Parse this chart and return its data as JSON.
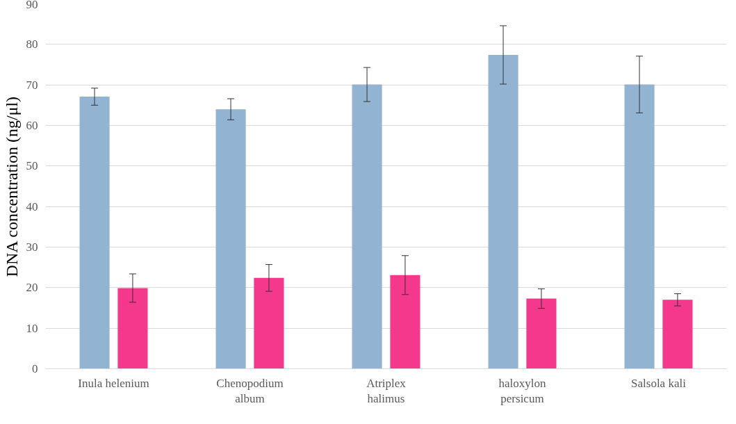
{
  "chart_data": {
    "type": "bar",
    "ylabel": "DNA concentration (ng/μl)",
    "categories": [
      "Inula helenium",
      "Chenopodium album",
      "Atriplex halimus",
      "haloxylon persicum",
      "Salsola kali"
    ],
    "series": [
      {
        "color": "#93b3d3",
        "values": [
          67.1,
          64.0,
          70.1,
          77.4,
          70.1
        ],
        "errors": [
          2.1,
          2.6,
          4.2,
          7.2,
          7.0
        ]
      },
      {
        "color": "#f4388c",
        "values": [
          19.9,
          22.4,
          23.1,
          17.3,
          17.0
        ],
        "errors": [
          3.5,
          3.3,
          4.8,
          2.4,
          1.5
        ]
      }
    ],
    "ylim": [
      0,
      90
    ],
    "yticks": [
      0,
      10,
      20,
      30,
      40,
      50,
      60,
      70,
      80,
      90
    ],
    "grid": "y"
  }
}
